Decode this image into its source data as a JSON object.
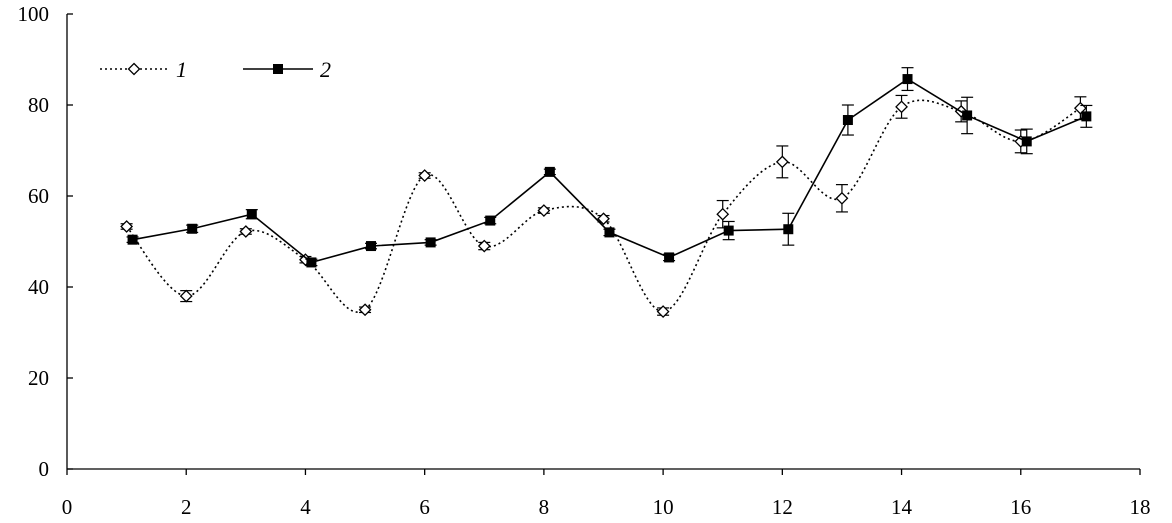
{
  "chart_data": {
    "type": "line",
    "title": "",
    "xlabel": "",
    "ylabel": "",
    "xlim": [
      0,
      18
    ],
    "ylim": [
      0,
      100
    ],
    "x_ticks": [
      0,
      2,
      4,
      6,
      8,
      10,
      12,
      14,
      16,
      18
    ],
    "y_ticks": [
      0,
      20,
      40,
      60,
      80,
      100
    ],
    "x_tick_labels": [
      "0",
      "2",
      "4",
      "6",
      "8",
      "10",
      "12",
      "14",
      "16",
      "18"
    ],
    "y_tick_labels": [
      "0",
      "20",
      "40",
      "60",
      "80",
      "100"
    ],
    "grid": false,
    "legend_position": "top-left",
    "series": [
      {
        "name": "1",
        "style": "dotted",
        "marker": "open-diamond",
        "color": "#000000",
        "x": [
          1,
          2,
          3,
          4,
          5,
          6,
          7,
          8,
          9,
          10,
          11,
          12,
          13,
          14,
          15,
          16,
          17
        ],
        "y": [
          53.3,
          38.0,
          52.2,
          46.0,
          35.0,
          64.5,
          49.0,
          56.8,
          55.0,
          34.6,
          56.0,
          67.5,
          59.5,
          79.6,
          78.6,
          72.0,
          79.3
        ],
        "error": [
          0.6,
          1.2,
          0.6,
          0.7,
          0.6,
          0.6,
          0.8,
          0.6,
          0.7,
          0.8,
          3.0,
          3.5,
          3.0,
          2.5,
          2.3,
          2.5,
          2.5
        ]
      },
      {
        "name": "2",
        "style": "solid",
        "marker": "filled-square",
        "color": "#000000",
        "x": [
          1.1,
          2.1,
          3.1,
          4.1,
          5.1,
          6.1,
          7.1,
          8.1,
          9.1,
          10.1,
          11.1,
          12.1,
          13.1,
          14.1,
          15.1,
          16.1,
          17.1
        ],
        "y": [
          50.4,
          52.8,
          56.0,
          45.4,
          49.0,
          49.8,
          54.6,
          65.3,
          52.0,
          46.5,
          52.4,
          52.7,
          76.7,
          85.7,
          77.7,
          72.0,
          77.5
        ],
        "error": [
          0.6,
          0.8,
          1.0,
          0.7,
          0.6,
          0.6,
          0.7,
          0.6,
          0.7,
          0.7,
          2.0,
          3.5,
          3.3,
          2.5,
          4.0,
          2.7,
          2.4
        ]
      }
    ]
  }
}
